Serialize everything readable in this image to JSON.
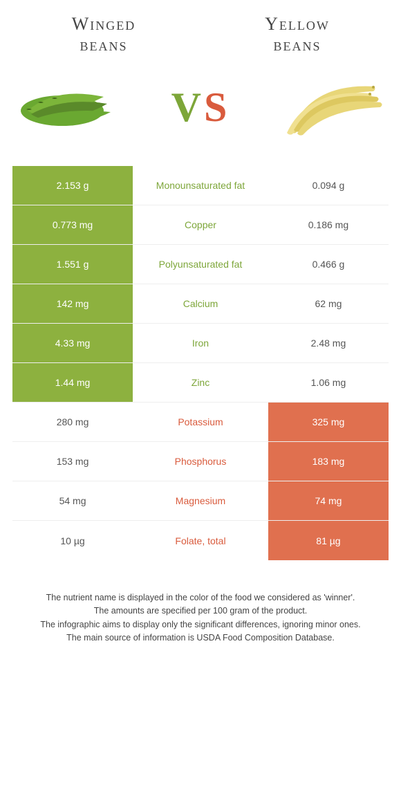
{
  "header": {
    "left_title_l1": "Winged",
    "left_title_l2": "beans",
    "right_title_l1": "Yellow",
    "right_title_l2": "beans",
    "vs_v": "V",
    "vs_s": "S"
  },
  "colors": {
    "green": "#8db13f",
    "orange": "#e0704f",
    "mid_green": "#7da639",
    "mid_orange": "#d95b3d"
  },
  "rows": [
    {
      "left": "2.153 g",
      "mid": "Monounsaturated fat",
      "right": "0.094 g",
      "winner": "left"
    },
    {
      "left": "0.773 mg",
      "mid": "Copper",
      "right": "0.186 mg",
      "winner": "left"
    },
    {
      "left": "1.551 g",
      "mid": "Polyunsaturated fat",
      "right": "0.466 g",
      "winner": "left"
    },
    {
      "left": "142 mg",
      "mid": "Calcium",
      "right": "62 mg",
      "winner": "left"
    },
    {
      "left": "4.33 mg",
      "mid": "Iron",
      "right": "2.48 mg",
      "winner": "left"
    },
    {
      "left": "1.44 mg",
      "mid": "Zinc",
      "right": "1.06 mg",
      "winner": "left"
    },
    {
      "left": "280 mg",
      "mid": "Potassium",
      "right": "325 mg",
      "winner": "right"
    },
    {
      "left": "153 mg",
      "mid": "Phosphorus",
      "right": "183 mg",
      "winner": "right"
    },
    {
      "left": "54 mg",
      "mid": "Magnesium",
      "right": "74 mg",
      "winner": "right"
    },
    {
      "left": "10 µg",
      "mid": "Folate, total",
      "right": "81 µg",
      "winner": "right"
    }
  ],
  "footer": {
    "l1": "The nutrient name is displayed in the color of the food we considered as 'winner'.",
    "l2": "The amounts are specified per 100 gram of the product.",
    "l3": "The infographic aims to display only the significant differences, ignoring minor ones.",
    "l4": "The main source of information is USDA Food Composition Database."
  }
}
